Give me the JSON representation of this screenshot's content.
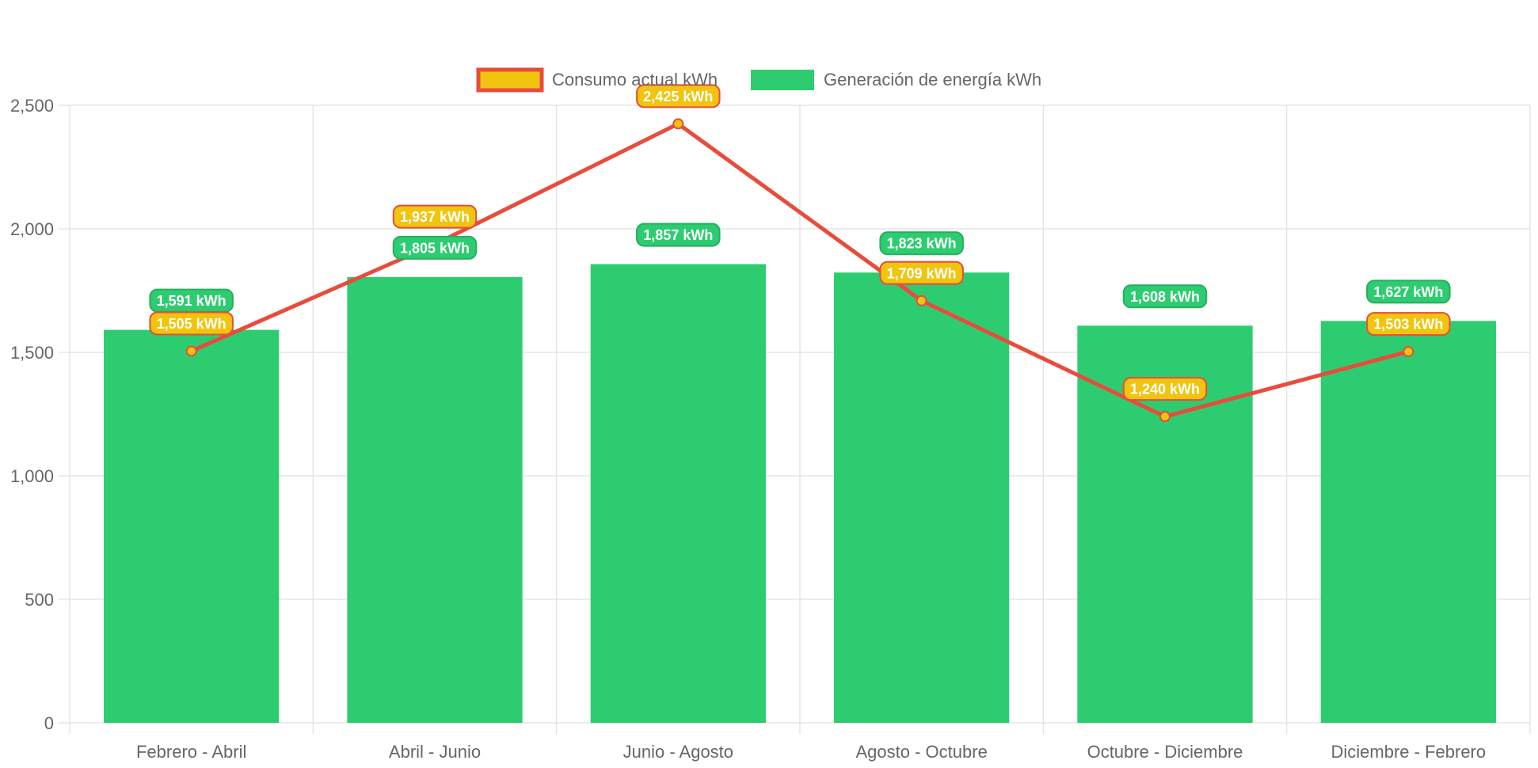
{
  "chart_data": {
    "type": "bar",
    "categories": [
      "Febrero - Abril",
      "Abril - Junio",
      "Junio - Agosto",
      "Agosto - Octubre",
      "Octubre - Diciembre",
      "Diciembre - Febrero"
    ],
    "series": [
      {
        "name": "Consumo actual kWh",
        "type": "line",
        "values": [
          1505,
          1937,
          2425,
          1709,
          1240,
          1503
        ],
        "labels": [
          "1,505 kWh",
          "1,937 kWh",
          "2,425 kWh",
          "1,709 kWh",
          "1,240 kWh",
          "1,503 kWh"
        ],
        "line_color": "#e74c3c",
        "fill_color": "#f1c40f"
      },
      {
        "name": "Generación de energía kWh",
        "type": "bar",
        "values": [
          1591,
          1805,
          1857,
          1823,
          1608,
          1627
        ],
        "labels": [
          "1,591 kWh",
          "1,805 kWh",
          "1,857 kWh",
          "1,823 kWh",
          "1,608 kWh",
          "1,627 kWh"
        ],
        "color": "#2ecc71",
        "label_border": "#27ae60"
      }
    ],
    "y_ticks": [
      "0",
      "500",
      "1,000",
      "1,500",
      "2,000",
      "2,500"
    ],
    "y_tick_values": [
      0,
      500,
      1000,
      1500,
      2000,
      2500
    ],
    "ylim": [
      0,
      2500
    ],
    "grid": true,
    "legend_position": "top-center",
    "grid_color": "#e0e0e0",
    "axis_text_color": "#666666"
  }
}
